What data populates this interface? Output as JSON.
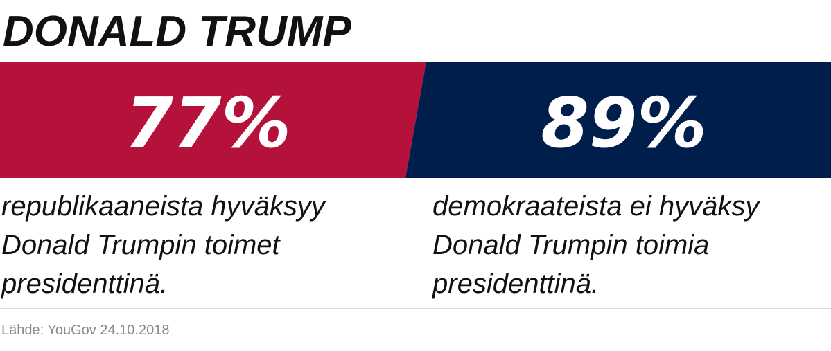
{
  "title": "DONALD TRUMP",
  "colors": {
    "republican": "#b5123b",
    "democrat": "#001e4b"
  },
  "chart_data": {
    "type": "bar",
    "title": "DONALD TRUMP",
    "categories": [
      "republikaaneista hyväksyy Donald Trumpin toimet presidenttinä.",
      "demokraateista ei hyväksy Donald Trumpin toimia presidenttinä."
    ],
    "values": [
      77,
      89
    ],
    "value_labels": [
      "77%",
      "89%"
    ],
    "colors": [
      "#b5123b",
      "#001e4b"
    ]
  },
  "captions": {
    "left": {
      "line1": "republikaaneista hyväksyy",
      "line2": "Donald Trumpin toimet",
      "line3": "presidenttinä."
    },
    "right": {
      "line1": "demokraateista ei hyväksy",
      "line2": "Donald Trumpin toimia",
      "line3": "presidenttinä."
    }
  },
  "source": "Lähde: YouGov 24.10.2018"
}
